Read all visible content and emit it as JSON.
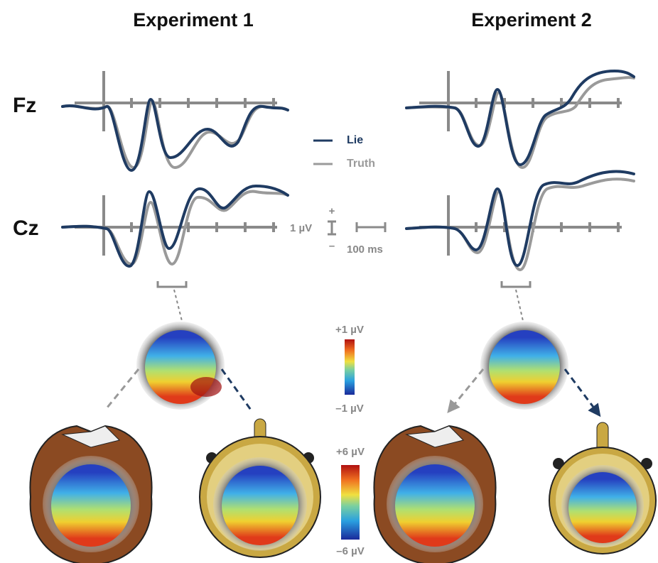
{
  "titles": [
    "Experiment 1",
    "Experiment 2"
  ],
  "electrodes": [
    "Fz",
    "Cz"
  ],
  "legend": [
    {
      "label": "Lie",
      "color": "#1f3b62"
    },
    {
      "label": "Truth",
      "color": "#9a9a9a"
    }
  ],
  "scale": {
    "plus": "+",
    "amplitude": "1 µV",
    "minus": "–",
    "time": "100 ms"
  },
  "colorbars": [
    {
      "max": "+1 µV",
      "min": "–1 µV"
    },
    {
      "max": "+6 µV",
      "min": "–6 µV"
    }
  ]
}
